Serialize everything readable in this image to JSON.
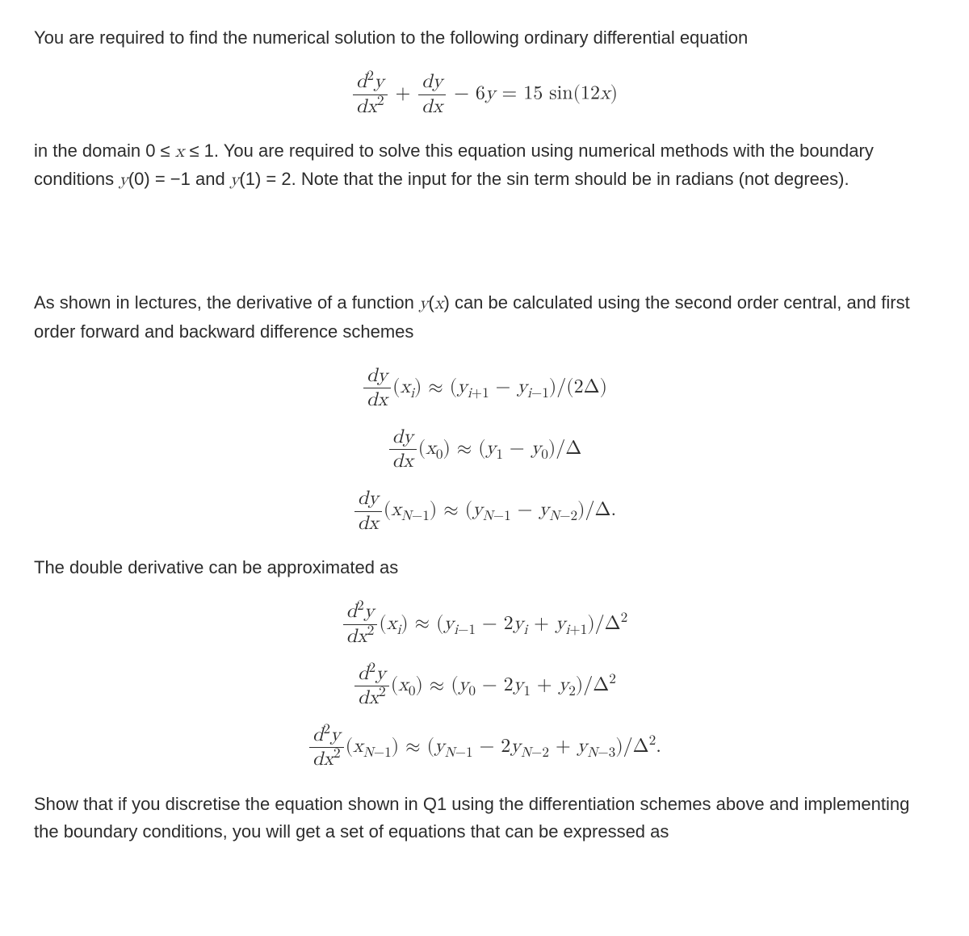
{
  "para1": "You are required to find the numerical solution to the following ordinary differential equation",
  "eq_main": {
    "term1_num_html": "<span class='mi'>d</span><span class='sup'>2</span><span class='mi'>y</span>",
    "term1_den_html": "<span class='mi'>d</span><span class='mi'>x</span><span class='sup'>2</span>",
    "plus": " + ",
    "term2_num_html": "<span class='mi'>dy</span>",
    "term2_den_html": "<span class='mi'>dx</span>",
    "rest_html": " − 6<span class='mi'>y</span> = 15 sin(12<span class='mi'>x</span>)"
  },
  "para2_html": "in the domain 0 ≤ <span class='mi'>x</span> ≤ 1.  You are required to solve this equation using numerical methods with the boundary conditions <span class='mi'>y</span>(0) = −1 and <span class='mi'>y</span>(1) = 2. Note that the input for the sin term should be in radians (not degrees).",
  "para3_html": "As shown in lectures, the derivative of a function <span class='mi'>y</span>(<span class='mi'>x</span>) can be calculated using the second order central, and first order forward and backward difference schemes",
  "first_derivs": [
    {
      "lhs_num": "<span class='mi'>dy</span>",
      "lhs_den": "<span class='mi'>dx</span>",
      "arg_html": "(<span class='mi'>x</span><span class='sub'><span class='mi'>i</span></span>)",
      "rhs_html": "(<span class='mi'>y</span><span class='sub'><span class='mi'>i</span>+1</span> − <span class='mi'>y</span><span class='sub'><span class='mi'>i</span>−1</span>)/(2Δ)"
    },
    {
      "lhs_num": "<span class='mi'>dy</span>",
      "lhs_den": "<span class='mi'>dx</span>",
      "arg_html": "(<span class='mi'>x</span><span class='sub'>0</span>)",
      "rhs_html": "(<span class='mi'>y</span><span class='sub'>1</span> − <span class='mi'>y</span><span class='sub'>0</span>)/Δ"
    },
    {
      "lhs_num": "<span class='mi'>dy</span>",
      "lhs_den": "<span class='mi'>dx</span>",
      "arg_html": "(<span class='mi'>x</span><span class='sub'><span class='mi'>N</span>−1</span>)",
      "rhs_html": "(<span class='mi'>y</span><span class='sub'><span class='mi'>N</span>−1</span> − <span class='mi'>y</span><span class='sub'><span class='mi'>N</span>−2</span>)/Δ."
    }
  ],
  "para4": "The double derivative can be approximated as",
  "second_derivs": [
    {
      "lhs_num": "<span class='mi'>d</span><span class='sup'>2</span><span class='mi'>y</span>",
      "lhs_den": "<span class='mi'>dx</span><span class='sup'>2</span>",
      "arg_html": "(<span class='mi'>x</span><span class='sub'><span class='mi'>i</span></span>)",
      "rhs_html": "(<span class='mi'>y</span><span class='sub'><span class='mi'>i</span>−1</span> − 2<span class='mi'>y</span><span class='sub'><span class='mi'>i</span></span> + <span class='mi'>y</span><span class='sub'><span class='mi'>i</span>+1</span>)/Δ<span class='sup'>2</span>"
    },
    {
      "lhs_num": "<span class='mi'>d</span><span class='sup'>2</span><span class='mi'>y</span>",
      "lhs_den": "<span class='mi'>dx</span><span class='sup'>2</span>",
      "arg_html": "(<span class='mi'>x</span><span class='sub'>0</span>)",
      "rhs_html": "(<span class='mi'>y</span><span class='sub'>0</span> − 2<span class='mi'>y</span><span class='sub'>1</span> + <span class='mi'>y</span><span class='sub'>2</span>)/Δ<span class='sup'>2</span>"
    },
    {
      "lhs_num": "<span class='mi'>d</span><span class='sup'>2</span><span class='mi'>y</span>",
      "lhs_den": "<span class='mi'>dx</span><span class='sup'>2</span>",
      "arg_html": "(<span class='mi'>x</span><span class='sub'><span class='mi'>N</span>−1</span>)",
      "rhs_html": "(<span class='mi'>y</span><span class='sub'><span class='mi'>N</span>−1</span> − 2<span class='mi'>y</span><span class='sub'><span class='mi'>N</span>−2</span> + <span class='mi'>y</span><span class='sub'><span class='mi'>N</span>−3</span>)/Δ<span class='sup'>2</span>."
    }
  ],
  "para5": "Show that if you discretise the equation shown in Q1 using the differentiation schemes above and implementing the boundary conditions, you will get a set of equations that can be expressed as",
  "approx": " ≈ "
}
